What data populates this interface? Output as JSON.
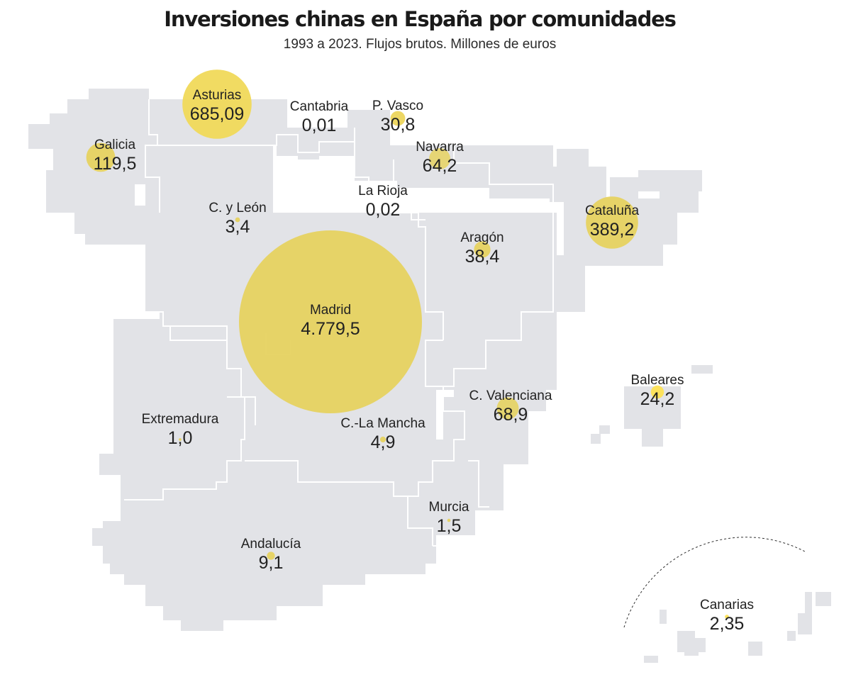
{
  "header": {
    "title": "Inversiones chinas en España por comunidades",
    "subtitle": "1993 a 2023. Flujos brutos. Millones de euros"
  },
  "colors": {
    "land": "#e2e3e7",
    "border": "#ffffff",
    "bubble": "#ffe14d",
    "bubble_on_land": "#e6d260",
    "text": "#222222"
  },
  "chart_data": {
    "type": "bubble-map",
    "title": "Inversiones chinas en España por comunidades",
    "subtitle": "1993 a 2023. Flujos brutos. Millones de euros",
    "unit": "Millones de euros",
    "regions": [
      {
        "name": "Galicia",
        "label": "119,5",
        "value": 119.5
      },
      {
        "name": "Asturias",
        "label": "685,09",
        "value": 685.09
      },
      {
        "name": "Cantabria",
        "label": "0,01",
        "value": 0.01
      },
      {
        "name": "P. Vasco",
        "label": "30,8",
        "value": 30.8
      },
      {
        "name": "Navarra",
        "label": "64,2",
        "value": 64.2
      },
      {
        "name": "La Rioja",
        "label": "0,02",
        "value": 0.02
      },
      {
        "name": "C. y León",
        "label": "3,4",
        "value": 3.4
      },
      {
        "name": "Aragón",
        "label": "38,4",
        "value": 38.4
      },
      {
        "name": "Cataluña",
        "label": "389,2",
        "value": 389.2
      },
      {
        "name": "Madrid",
        "label": "4.779,5",
        "value": 4779.5
      },
      {
        "name": "Extremadura",
        "label": "1,0",
        "value": 1.0
      },
      {
        "name": "C.-La Mancha",
        "label": "4,9",
        "value": 4.9
      },
      {
        "name": "C. Valenciana",
        "label": "68,9",
        "value": 68.9
      },
      {
        "name": "Baleares",
        "label": "24,2",
        "value": 24.2
      },
      {
        "name": "Murcia",
        "label": "1,5",
        "value": 1.5
      },
      {
        "name": "Andalucía",
        "label": "9,1",
        "value": 9.1
      },
      {
        "name": "Canarias",
        "label": "2,35",
        "value": 2.35
      }
    ]
  }
}
